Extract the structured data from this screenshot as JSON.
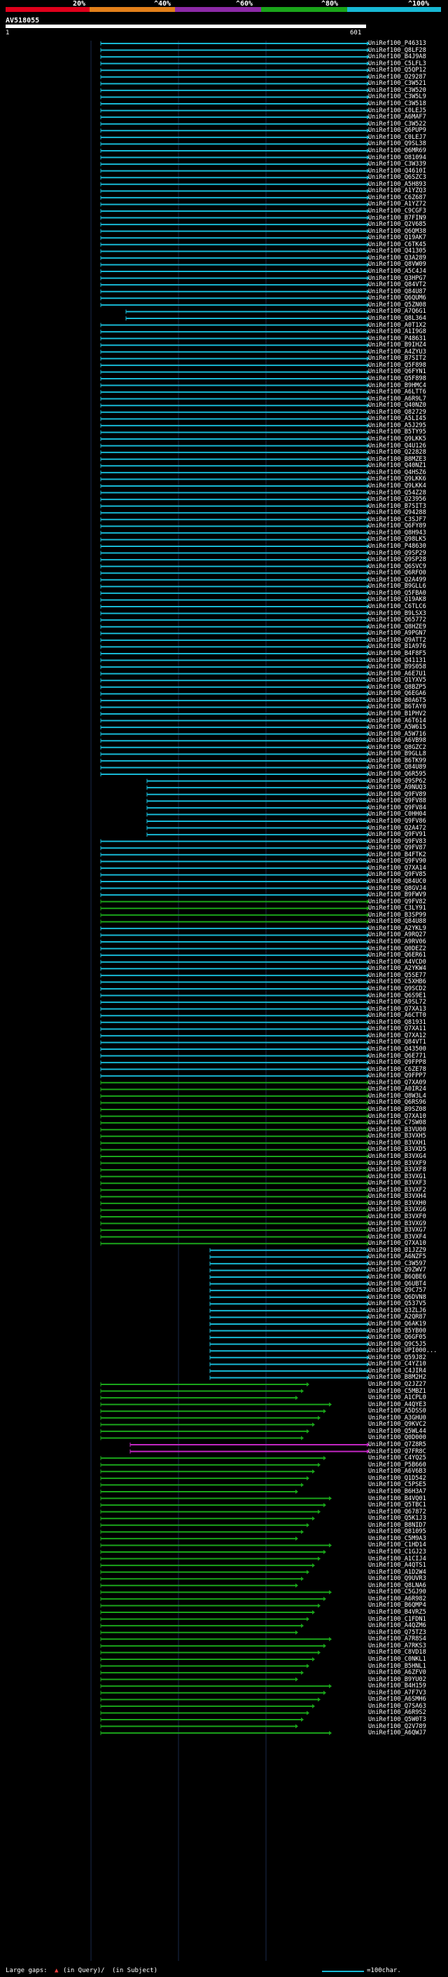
{
  "header": {
    "scale_labels": [
      "20%",
      "^40%",
      "^60%",
      "^80%",
      "^100%"
    ],
    "bands": [
      {
        "color": "#e0001b",
        "label": "0-20%"
      },
      {
        "color": "#e2801a",
        "label": "20-40%"
      },
      {
        "color": "#8d2aa7",
        "label": "40-60%"
      },
      {
        "color": "#1aa51a",
        "label": "60-80%"
      },
      {
        "color": "#17b8d4",
        "label": "80-100%"
      }
    ],
    "query_name": "AV518055",
    "query_start": "1",
    "query_end": "601"
  },
  "hits": [
    "UniRef100_P46313",
    "UniRef100_Q8LF28",
    "UniRef100_B4J9A8",
    "UniRef100_C5LFL3",
    "UniRef100_Q5QP12",
    "UniRef100_O29287",
    "UniRef100_C3W521",
    "UniRef100_C3W520",
    "UniRef100_C3W5L9",
    "UniRef100_C3W518",
    "UniRef100_C0LEJ5",
    "UniRef100_A6MAF7",
    "UniRef100_C3W522",
    "UniRef100_Q6PUP9",
    "UniRef100_C0LEJ7",
    "UniRef100_Q9SL38",
    "UniRef100_Q6MR69",
    "UniRef100_O81094",
    "UniRef100_C3W339",
    "UniRef100_Q4610I",
    "UniRef100_Q6SZC3",
    "UniRef100_A5H893",
    "UniRef100_A1YZQ3",
    "UniRef100_C6Z687",
    "UniRef100_A1YZ72",
    "UniRef100_C9CGF3",
    "UniRef100_B7FIN9",
    "UniRef100_Q2V685",
    "UniRef100_Q6QM38",
    "UniRef100_Q19AK7",
    "UniRef100_C6TK45",
    "UniRef100_Q41305",
    "UniRef100_Q3A289",
    "UniRef100_Q8VW09",
    "UniRef100_A5C4J4",
    "UniRef100_Q3HPG7",
    "UniRef100_Q84VT2",
    "UniRef100_Q84U87",
    "UniRef100_Q6QUM6",
    "UniRef100_Q5ZN08",
    "UniRef100_A7Q6G1",
    "UniRef100_Q8L364",
    "UniRef100_A0T1X2",
    "UniRef100_A1I9G8",
    "UniRef100_P48631",
    "UniRef100_B9IHZ4",
    "UniRef100_A4ZYU3",
    "UniRef100_B7SIT2",
    "UniRef100_Q5F898",
    "UniRef100_Q6FYN1",
    "UniRef100_Q5F898",
    "UniRef100_B9HMC4",
    "UniRef100_A6LTT6",
    "UniRef100_A6R9L7",
    "UniRef100_Q40NZ0",
    "UniRef100_Q82729",
    "UniRef100_A5LI45",
    "UniRef100_A5J295",
    "UniRef100_B5TY95",
    "UniRef100_Q9LKK5",
    "UniRef100_Q4U126",
    "UniRef100_Q22828",
    "UniRef100_B8MZE3",
    "UniRef100_Q40NZ1",
    "UniRef100_Q4HSZ6",
    "UniRef100_Q9LKK6",
    "UniRef100_Q9LKK4",
    "UniRef100_Q54Z28",
    "UniRef100_Q23956",
    "UniRef100_B7SIT3",
    "UniRef100_Q94288",
    "UniRef100_C3SJF7",
    "UniRef100_Q6FY89",
    "UniRef100_Q8H943",
    "UniRef100_Q98LK5",
    "UniRef100_P48630",
    "UniRef100_Q9SP29",
    "UniRef100_Q9SP28",
    "UniRef100_Q6SVC9",
    "UniRef100_Q6RFO0",
    "UniRef100_Q2A499",
    "UniRef100_B9GLL6",
    "UniRef100_Q5FBA0",
    "UniRef100_Q19AK8",
    "UniRef100_C6TLC6",
    "UniRef100_B9LSX3",
    "UniRef100_Q65772",
    "UniRef100_Q8HZE9",
    "UniRef100_A9PGN7",
    "UniRef100_Q9ATT2",
    "UniRef100_B1A976",
    "UniRef100_B4F8F5",
    "UniRef100_Q41131",
    "UniRef100_B9S058",
    "UniRef100_A6E7U1",
    "UniRef100_Q1YXV5",
    "UniRef100_Q8BZP5",
    "UniRef100_Q6EGA6",
    "UniRef100_B0A6T5",
    "UniRef100_B6TAY0",
    "UniRef100_B1PHV2",
    "UniRef100_A6T614",
    "UniRef100_A5W615",
    "UniRef100_A5W716",
    "UniRef100_A6VB98",
    "UniRef100_Q8GZC2",
    "UniRef100_B9GLL8",
    "UniRef100_B6TK99",
    "UniRef100_Q84U89",
    "UniRef100_Q6R595",
    "UniRef100_Q9SP62",
    "UniRef100_A9NUQ3",
    "UniRef100_Q9FV89",
    "UniRef100_Q9FV88",
    "UniRef100_Q9FV84",
    "UniRef100_C0HH04",
    "UniRef100_Q9FV86",
    "UniRef100_Q2A472",
    "UniRef100_Q9FV91",
    "UniRef100_Q9FV83",
    "UniRef100_Q9FV87",
    "UniRef100_B4FTK2",
    "UniRef100_Q9FV90",
    "UniRef100_Q7XA14",
    "UniRef100_Q9FV85",
    "UniRef100_Q84UC0",
    "UniRef100_Q8GVJ4",
    "UniRef100_B9FWV9",
    "UniRef100_Q9FV82",
    "UniRef100_C3LY91",
    "UniRef100_B3SP99",
    "UniRef100_Q84U88",
    "UniRef100_A2YKL9",
    "UniRef100_A9RQ27",
    "UniRef100_A9RV06",
    "UniRef100_Q0DEZ2",
    "UniRef100_Q6ER61",
    "UniRef100_A4VCD0",
    "UniRef100_A2YKW4",
    "UniRef100_Q5SE77",
    "UniRef100_C5XHB6",
    "UniRef100_Q9SCD2",
    "UniRef100_Q6S9E1",
    "UniRef100_A9SL72",
    "UniRef100_Q7XA13",
    "UniRef100_A6CTT0",
    "UniRef100_Q81931",
    "UniRef100_Q7XA11",
    "UniRef100_Q7XA12",
    "UniRef100_Q84VT1",
    "UniRef100_Q43500",
    "UniRef100_Q6E771",
    "UniRef100_Q9FPP8",
    "UniRef100_C6ZE78",
    "UniRef100_Q9FPP7",
    "UniRef100_Q7XA09",
    "UniRef100_A0IR24",
    "UniRef100_Q8W3L4",
    "UniRef100_Q6RS96",
    "UniRef100_B9SZ08",
    "UniRef100_Q7XA10",
    "UniRef100_C7SW08",
    "UniRef100_B3VU00",
    "UniRef100_B3VXH5",
    "UniRef100_B3VXH1",
    "UniRef100_B3VXD5",
    "UniRef100_B3VXG4",
    "UniRef100_B3VXF9",
    "UniRef100_B3VXF8",
    "UniRef100_B3VXG1",
    "UniRef100_B3VXF3",
    "UniRef100_B3VXF2",
    "UniRef100_B3VXH4",
    "UniRef100_B3VXH0",
    "UniRef100_B3VXG6",
    "UniRef100_B3VXF0",
    "UniRef100_B3VXG9",
    "UniRef100_B3VXG7",
    "UniRef100_B3VXF4",
    "UniRef100_Q7XA10",
    "UniRef100_B1JZZ9",
    "UniRef100_A6NZF5",
    "UniRef100_C3W597",
    "UniRef100_Q9ZWV7",
    "UniRef100_B6QBE6",
    "UniRef100_Q6UBT4",
    "UniRef100_Q9C757",
    "UniRef100_Q6DVN8",
    "UniRef100_Q537V5",
    "UniRef100_Q3ZLJ6",
    "UniRef100_A2QR87",
    "UniRef100_Q6AK19",
    "UniRef100_B5YB00",
    "UniRef100_Q6GF05",
    "UniRef100_Q9C5J5",
    "UniRef100_UPI000...",
    "UniRef100_Q59J82",
    "UniRef100_C4YZ10",
    "UniRef100_C4JIR4",
    "UniRef100_B8M2H2",
    "UniRef100_Q2JZ27",
    "UniRef100_C5MBZ1",
    "UniRef100_A1CPL0",
    "UniRef100_A4QYE3",
    "UniRef100_A5DSS0",
    "UniRef100_A3GHU0",
    "UniRef100_Q9KVC2",
    "UniRef100_Q5WL44",
    "UniRef100_Q0D000",
    "UniRef100_Q7Z8R5",
    "UniRef100_Q7FR8C",
    "UniRef100_C4YQ25",
    "UniRef100_P5B660",
    "UniRef100_A6V6B3",
    "UniRef100_Q1D542",
    "UniRef100_C5PSE5",
    "UniRef100_B6H3A7",
    "UniRef100_B4VQ01",
    "UniRef100_Q5TBC1",
    "UniRef100_Q67872",
    "UniRef100_Q5K1J3",
    "UniRef100_B8NID7",
    "UniRef100_Q81095",
    "UniRef100_C5M9A3",
    "UniRef100_C1HD14",
    "UniRef100_C1GJ23",
    "UniRef100_A1CIJ4",
    "UniRef100_A4QTS1",
    "UniRef100_A1D2W4",
    "UniRef100_Q9UVR3",
    "UniRef100_Q8LNA6",
    "UniRef100_C5GJ90",
    "UniRef100_A6R982",
    "UniRef100_B6QMP4",
    "UniRef100_B4VRZ5",
    "UniRef100_C1FDN1",
    "UniRef100_A4QZM6",
    "UniRef100_Q75TZ3",
    "UniRef100_A7R8S4",
    "UniRef100_A7RKS3",
    "UniRef100_C8VD18",
    "UniRef100_C0NKL1",
    "UniRef100_B5HNL1",
    "UniRef100_A6ZFV0",
    "UniRef100_B9YU02",
    "UniRef100_B4H159",
    "UniRef100_A7F7V3",
    "UniRef100_A6SMH6",
    "UniRef100_Q7SA63",
    "UniRef100_A6R9S2",
    "UniRef100_Q5W0T3",
    "UniRef100_Q2V789",
    "UniRef100_A6QWJ7"
  ],
  "legend": {
    "large_gaps_label": "Large gaps:",
    "in_query_label": "(in Query)/",
    "in_subject_label": "(in Subject)",
    "scale_label": "=100char."
  }
}
